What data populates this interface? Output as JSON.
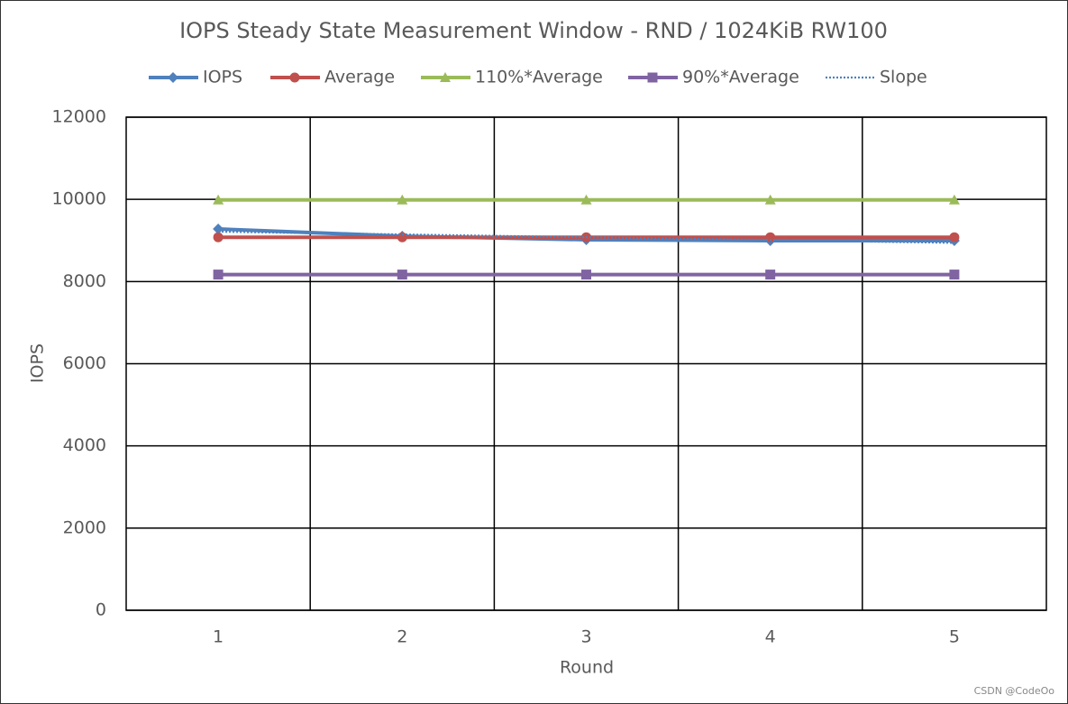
{
  "chart_data": {
    "type": "line",
    "title": "IOPS Steady State Measurement Window - RND / 1024KiB RW100",
    "x_label": "Round",
    "y_label": "IOPS",
    "categories": [
      "1",
      "2",
      "3",
      "4",
      "5"
    ],
    "series": [
      {
        "name": "IOPS",
        "color": "#4f81bd",
        "marker": "diamond",
        "linestyle": "solid",
        "values": [
          9280,
          9105,
          9017,
          8995,
          8995
        ]
      },
      {
        "name": "Average",
        "color": "#c0504d",
        "marker": "circle",
        "linestyle": "solid",
        "values": [
          9078,
          9078,
          9078,
          9078,
          9078
        ]
      },
      {
        "name": "110%*Average",
        "color": "#9bbb59",
        "marker": "triangle",
        "linestyle": "solid",
        "values": [
          9986,
          9986,
          9986,
          9986,
          9986
        ]
      },
      {
        "name": "90%*Average",
        "color": "#8064a2",
        "marker": "square",
        "linestyle": "solid",
        "values": [
          8170,
          8170,
          8170,
          8170,
          8170
        ]
      },
      {
        "name": "Slope",
        "color": "#4f81bd",
        "marker": "none",
        "linestyle": "dotted",
        "values": [
          9214,
          9146,
          9078,
          9010,
          8942
        ]
      }
    ],
    "ylim": [
      0,
      12000
    ],
    "yticks": [
      0,
      2000,
      4000,
      6000,
      8000,
      10000,
      12000
    ],
    "grid": true,
    "legend": "top",
    "watermark": "CSDN @CodeOo"
  }
}
